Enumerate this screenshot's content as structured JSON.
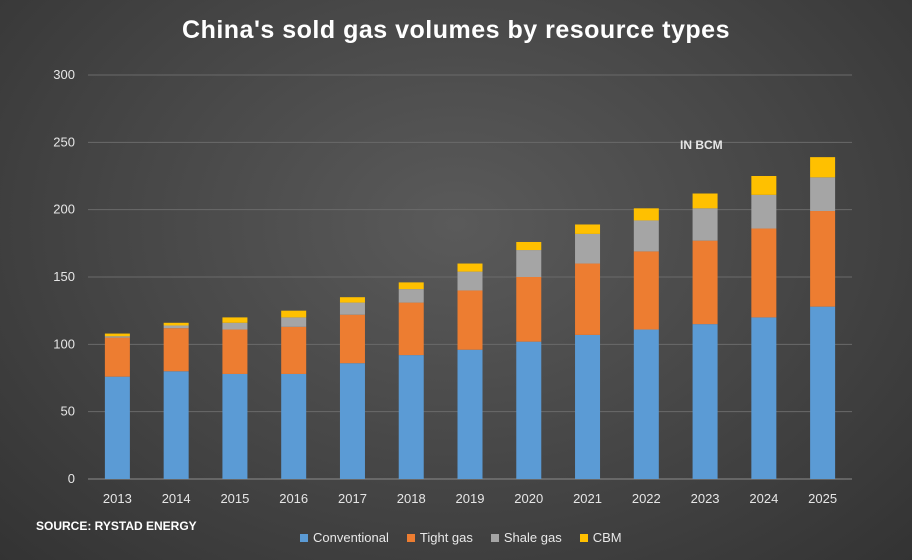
{
  "chart_data": {
    "type": "bar",
    "stacked": true,
    "title": "China's sold gas volumes by resource types",
    "annotation": "IN BCM",
    "source": "SOURCE: RYSTAD ENERGY",
    "categories": [
      "2013",
      "2014",
      "2015",
      "2016",
      "2017",
      "2018",
      "2019",
      "2020",
      "2021",
      "2022",
      "2023",
      "2024",
      "2025"
    ],
    "ylim": [
      0,
      300
    ],
    "yticks": [
      0,
      50,
      100,
      150,
      200,
      250,
      300
    ],
    "grid": true,
    "legend_position": "bottom",
    "series": [
      {
        "name": "Conventional",
        "color": "#5b9bd5",
        "values": [
          76,
          80,
          78,
          78,
          86,
          92,
          96,
          102,
          107,
          111,
          115,
          120,
          128
        ]
      },
      {
        "name": "Tight gas",
        "color": "#ed7d31",
        "values": [
          29,
          32,
          33,
          35,
          36,
          39,
          44,
          48,
          53,
          58,
          62,
          66,
          71
        ]
      },
      {
        "name": "Shale gas",
        "color": "#a5a5a5",
        "values": [
          1,
          2,
          5,
          7,
          9,
          10,
          14,
          20,
          22,
          23,
          24,
          25,
          25
        ]
      },
      {
        "name": "CBM",
        "color": "#ffc000",
        "values": [
          2,
          2,
          4,
          5,
          4,
          5,
          6,
          6,
          7,
          9,
          11,
          14,
          15
        ]
      }
    ]
  }
}
